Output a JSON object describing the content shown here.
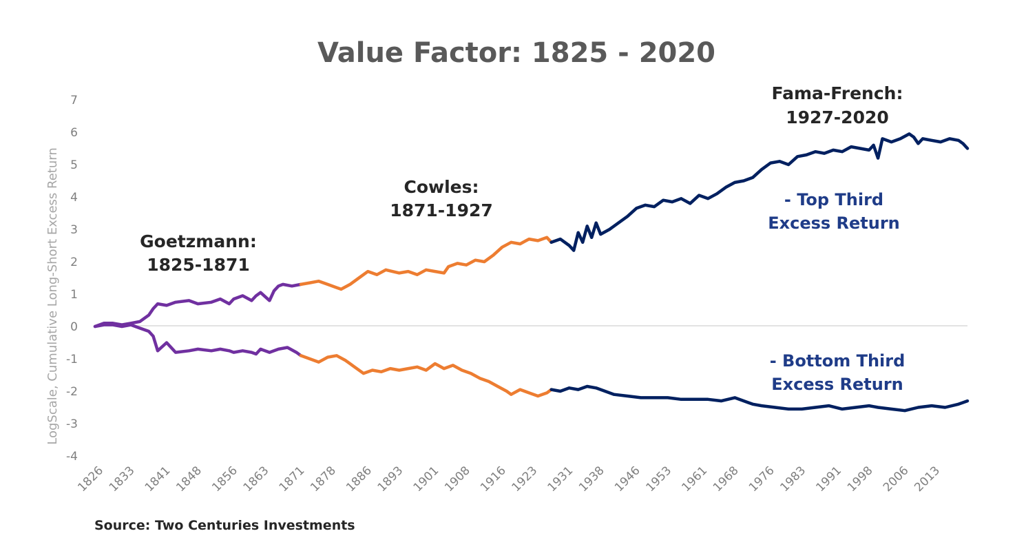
{
  "chart_data": {
    "type": "line",
    "title": "Value Factor: 1825  - 2020",
    "ylabel": "LogScale, Cumulative Long-Short Excess Return",
    "ylim": [
      -4,
      7
    ],
    "xlim": [
      1825,
      2020
    ],
    "yticks": [
      "7",
      "6",
      "5",
      "4",
      "3",
      "2",
      "1",
      "0",
      "-1",
      "-2",
      "-3",
      "-4"
    ],
    "xticks": [
      "1826",
      "1833",
      "1841",
      "1848",
      "1856",
      "1863",
      "1871",
      "1878",
      "1886",
      "1893",
      "1901",
      "1908",
      "1916",
      "1923",
      "1931",
      "1938",
      "1946",
      "1953",
      "1961",
      "1968",
      "1976",
      "1983",
      "1991",
      "1998",
      "2006",
      "2013"
    ],
    "grid": false,
    "eras": [
      {
        "label_line1": "Goetzmann:",
        "label_line2": "1825-1871",
        "color": "#7030a0"
      },
      {
        "label_line1": "Cowles:",
        "label_line2": "1871-1927",
        "color": "#ed7d31"
      },
      {
        "label_line1": "Fama-French:",
        "label_line2": "1927-2020",
        "color": "#002060"
      }
    ],
    "series": [
      {
        "name": "Top Third Excess Return",
        "legend_line1": "- Top Third",
        "legend_line2": "Excess Return",
        "x": [
          1825,
          1827,
          1829,
          1831,
          1833,
          1835,
          1837,
          1838,
          1839,
          1841,
          1843,
          1846,
          1848,
          1851,
          1853,
          1855,
          1856,
          1858,
          1860,
          1861,
          1862,
          1864,
          1865,
          1866,
          1867,
          1869,
          1871,
          1873,
          1875,
          1877,
          1879,
          1880,
          1882,
          1884,
          1886,
          1888,
          1890,
          1893,
          1895,
          1897,
          1899,
          1901,
          1903,
          1904,
          1906,
          1908,
          1910,
          1912,
          1914,
          1916,
          1918,
          1920,
          1922,
          1924,
          1926,
          1927,
          1929,
          1931,
          1932,
          1933,
          1934,
          1935,
          1936,
          1937,
          1938,
          1940,
          1942,
          1944,
          1946,
          1948,
          1950,
          1952,
          1954,
          1956,
          1958,
          1960,
          1962,
          1964,
          1966,
          1968,
          1970,
          1972,
          1974,
          1976,
          1978,
          1980,
          1982,
          1984,
          1986,
          1988,
          1990,
          1992,
          1994,
          1996,
          1998,
          1999,
          2000,
          2001,
          2003,
          2005,
          2007,
          2008,
          2009,
          2010,
          2012,
          2014,
          2016,
          2018,
          2019,
          2020
        ],
        "y": [
          0.0,
          0.1,
          0.1,
          0.05,
          0.1,
          0.15,
          0.35,
          0.55,
          0.7,
          0.65,
          0.75,
          0.8,
          0.7,
          0.75,
          0.85,
          0.7,
          0.85,
          0.95,
          0.8,
          0.95,
          1.05,
          0.8,
          1.1,
          1.25,
          1.3,
          1.25,
          1.3,
          1.35,
          1.4,
          1.3,
          1.2,
          1.15,
          1.3,
          1.5,
          1.7,
          1.6,
          1.75,
          1.65,
          1.7,
          1.6,
          1.75,
          1.7,
          1.65,
          1.85,
          1.95,
          1.9,
          2.05,
          2.0,
          2.2,
          2.45,
          2.6,
          2.55,
          2.7,
          2.65,
          2.75,
          2.6,
          2.7,
          2.5,
          2.35,
          2.9,
          2.6,
          3.1,
          2.75,
          3.2,
          2.85,
          3.0,
          3.2,
          3.4,
          3.65,
          3.75,
          3.7,
          3.9,
          3.85,
          3.95,
          3.8,
          4.05,
          3.95,
          4.1,
          4.3,
          4.45,
          4.5,
          4.6,
          4.85,
          5.05,
          5.1,
          5.0,
          5.25,
          5.3,
          5.4,
          5.35,
          5.45,
          5.4,
          5.55,
          5.5,
          5.45,
          5.6,
          5.2,
          5.8,
          5.7,
          5.8,
          5.95,
          5.85,
          5.65,
          5.8,
          5.75,
          5.7,
          5.8,
          5.75,
          5.65,
          5.5
        ]
      },
      {
        "name": "Bottom Third Excess Return",
        "legend_line1": "- Bottom Third",
        "legend_line2": "Excess Return",
        "x": [
          1825,
          1827,
          1829,
          1831,
          1833,
          1835,
          1837,
          1838,
          1839,
          1841,
          1843,
          1846,
          1848,
          1851,
          1853,
          1855,
          1856,
          1858,
          1860,
          1861,
          1862,
          1864,
          1866,
          1868,
          1870,
          1871,
          1873,
          1875,
          1877,
          1879,
          1881,
          1883,
          1885,
          1887,
          1889,
          1891,
          1893,
          1895,
          1897,
          1899,
          1901,
          1903,
          1905,
          1907,
          1909,
          1911,
          1913,
          1915,
          1917,
          1918,
          1920,
          1922,
          1924,
          1926,
          1927,
          1929,
          1931,
          1933,
          1935,
          1937,
          1939,
          1941,
          1944,
          1947,
          1950,
          1953,
          1956,
          1959,
          1962,
          1965,
          1968,
          1971,
          1972,
          1974,
          1977,
          1980,
          1983,
          1986,
          1989,
          1992,
          1995,
          1998,
          2000,
          2003,
          2006,
          2009,
          2012,
          2015,
          2018,
          2020
        ],
        "y": [
          0.0,
          0.05,
          0.05,
          0.0,
          0.05,
          -0.05,
          -0.15,
          -0.3,
          -0.75,
          -0.5,
          -0.8,
          -0.75,
          -0.7,
          -0.75,
          -0.7,
          -0.75,
          -0.8,
          -0.75,
          -0.8,
          -0.85,
          -0.7,
          -0.8,
          -0.7,
          -0.65,
          -0.8,
          -0.9,
          -1.0,
          -1.1,
          -0.95,
          -0.9,
          -1.05,
          -1.25,
          -1.45,
          -1.35,
          -1.4,
          -1.3,
          -1.35,
          -1.3,
          -1.25,
          -1.35,
          -1.15,
          -1.3,
          -1.2,
          -1.35,
          -1.45,
          -1.6,
          -1.7,
          -1.85,
          -2.0,
          -2.1,
          -1.95,
          -2.05,
          -2.15,
          -2.05,
          -1.95,
          -2.0,
          -1.9,
          -1.95,
          -1.85,
          -1.9,
          -2.0,
          -2.1,
          -2.15,
          -2.2,
          -2.2,
          -2.2,
          -2.25,
          -2.25,
          -2.25,
          -2.3,
          -2.2,
          -2.35,
          -2.4,
          -2.45,
          -2.5,
          -2.55,
          -2.55,
          -2.5,
          -2.45,
          -2.55,
          -2.5,
          -2.45,
          -2.5,
          -2.55,
          -2.6,
          -2.5,
          -2.45,
          -2.5,
          -2.4,
          -2.3
        ]
      }
    ],
    "source": "Source: Two Centuries Investments"
  }
}
